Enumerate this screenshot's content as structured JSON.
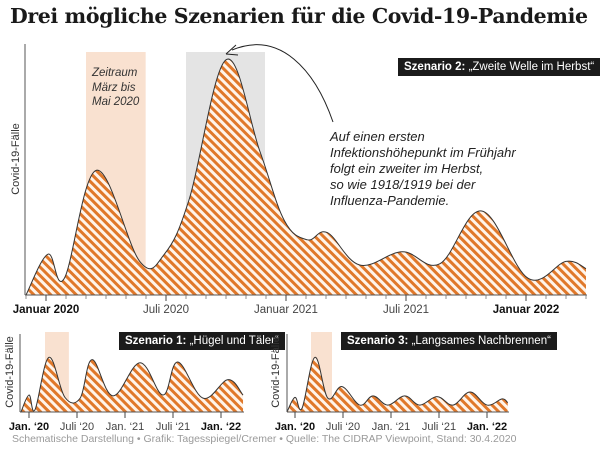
{
  "title": "Drei mögliche Szenarien für die Covid-19-Pandemie",
  "footer": "Schematische Darstellung • Grafik: Tagesspiegel/Cremer • Quelle: The CIDRAP Viewpoint, Stand: 30.4.2020",
  "colors": {
    "hatch": "#e0782a",
    "hatch_bg": "#fff4ea",
    "band_orange": "#f9e1d0",
    "band_gray": "#e4e4e4",
    "outline": "#333333",
    "label_box": "#1b1b1b"
  },
  "chart_data": [
    {
      "type": "area",
      "fill": "diagonal-hatch",
      "label_prefix": "Szenario 2:",
      "label_text": "„Zweite Welle im Herbst“",
      "ylabel": "Covid-19-Fälle",
      "y_scale": "relative, unlabeled",
      "grid": false,
      "xlim": [
        "2019-12-01",
        "2022-04-01"
      ],
      "ylim": [
        0,
        100
      ],
      "x_ticks": [
        {
          "date": "2020-01-01",
          "label": "Januar 2020",
          "bold": true
        },
        {
          "date": "2020-07-01",
          "label": "Juli 2020",
          "bold": false
        },
        {
          "date": "2021-01-01",
          "label": "Januar 2021",
          "bold": false
        },
        {
          "date": "2021-07-01",
          "label": "Juli 2021",
          "bold": false
        },
        {
          "date": "2022-01-01",
          "label": "Januar 2022",
          "bold": true
        }
      ],
      "bands": [
        {
          "from": "2020-03-01",
          "to": "2020-05-31",
          "color": "orange",
          "label_lines": [
            "Zeitraum",
            "März bis",
            "Mai 2020"
          ]
        },
        {
          "from": "2020-08-01",
          "to": "2020-11-30",
          "color": "gray"
        }
      ],
      "annotation_lines": [
        "Auf einen ersten",
        "Infektionshöhepunkt im Frühjahr",
        "folgt ein zweiter im Herbst,",
        "so wie 1918/1919 bei der",
        "Influenza-Pandemie."
      ],
      "points": [
        [
          "2019-12-01",
          0
        ],
        [
          "2020-01-04",
          17
        ],
        [
          "2020-01-29",
          7
        ],
        [
          "2020-03-17",
          52
        ],
        [
          "2020-05-22",
          14
        ],
        [
          "2020-06-29",
          17
        ],
        [
          "2020-08-06",
          40
        ],
        [
          "2020-10-01",
          98
        ],
        [
          "2020-11-22",
          60
        ],
        [
          "2020-12-29",
          31
        ],
        [
          "2021-02-03",
          23
        ],
        [
          "2021-03-03",
          26
        ],
        [
          "2021-04-22",
          12.5
        ],
        [
          "2021-06-26",
          18
        ],
        [
          "2021-08-22",
          13
        ],
        [
          "2021-10-25",
          35
        ],
        [
          "2022-01-04",
          7
        ],
        [
          "2022-03-01",
          14
        ],
        [
          "2022-04-01",
          11
        ]
      ]
    },
    {
      "type": "area",
      "fill": "diagonal-hatch",
      "label_prefix": "Szenario 1:",
      "label_text": "„Hügel und Täler“",
      "ylabel": "Covid-19-Fälle",
      "xlim": [
        "2019-12-01",
        "2022-04-01"
      ],
      "ylim": [
        0,
        100
      ],
      "x_ticks": [
        {
          "date": "2020-01-01",
          "label": "Jan. ‘20",
          "bold": true
        },
        {
          "date": "2020-07-01",
          "label": "Juli ‘20",
          "bold": false
        },
        {
          "date": "2021-01-01",
          "label": "Jan. ‘21",
          "bold": false
        },
        {
          "date": "2021-07-01",
          "label": "Juli ‘21",
          "bold": false
        },
        {
          "date": "2022-01-01",
          "label": "Jan. ‘22",
          "bold": true
        }
      ],
      "bands": [
        {
          "from": "2020-03-01",
          "to": "2020-05-31",
          "color": "orange"
        }
      ],
      "points": [
        [
          "2019-12-01",
          0
        ],
        [
          "2020-01-01",
          22
        ],
        [
          "2020-01-24",
          3
        ],
        [
          "2020-03-16",
          71
        ],
        [
          "2020-05-16",
          19
        ],
        [
          "2020-07-13",
          18
        ],
        [
          "2020-08-28",
          68
        ],
        [
          "2020-11-16",
          21
        ],
        [
          "2021-02-28",
          64
        ],
        [
          "2021-05-24",
          22
        ],
        [
          "2021-07-19",
          65
        ],
        [
          "2021-10-24",
          18
        ],
        [
          "2022-01-28",
          42
        ],
        [
          "2022-03-24",
          22
        ]
      ]
    },
    {
      "type": "area",
      "fill": "diagonal-hatch",
      "label_prefix": "Szenario 3:",
      "label_text": "„Langsames Nachbrennen“",
      "ylabel": "Covid-19-Fälle",
      "xlim": [
        "2019-12-01",
        "2022-03-19"
      ],
      "ylim": [
        0,
        100
      ],
      "x_ticks": [
        {
          "date": "2020-01-01",
          "label": "Jan. ‘20",
          "bold": true
        },
        {
          "date": "2020-07-01",
          "label": "Juli ‘20",
          "bold": false
        },
        {
          "date": "2021-01-01",
          "label": "Jan. ‘21",
          "bold": false
        },
        {
          "date": "2021-07-01",
          "label": "Juli ‘21",
          "bold": false
        },
        {
          "date": "2022-01-01",
          "label": "Jan. ‘22",
          "bold": true
        }
      ],
      "bands": [
        {
          "from": "2020-03-01",
          "to": "2020-05-20",
          "color": "orange"
        }
      ],
      "points": [
        [
          "2019-12-01",
          0
        ],
        [
          "2020-01-01",
          19
        ],
        [
          "2020-01-28",
          5
        ],
        [
          "2020-03-16",
          71
        ],
        [
          "2020-05-04",
          18
        ],
        [
          "2020-06-28",
          33
        ],
        [
          "2020-09-04",
          9
        ],
        [
          "2020-10-24",
          21
        ],
        [
          "2020-12-19",
          9
        ],
        [
          "2021-02-23",
          21
        ],
        [
          "2021-04-19",
          9
        ],
        [
          "2021-06-24",
          20
        ],
        [
          "2021-08-24",
          9
        ],
        [
          "2021-10-28",
          26
        ],
        [
          "2022-01-01",
          9
        ],
        [
          "2022-02-28",
          17
        ],
        [
          "2022-03-19",
          12
        ]
      ]
    }
  ]
}
